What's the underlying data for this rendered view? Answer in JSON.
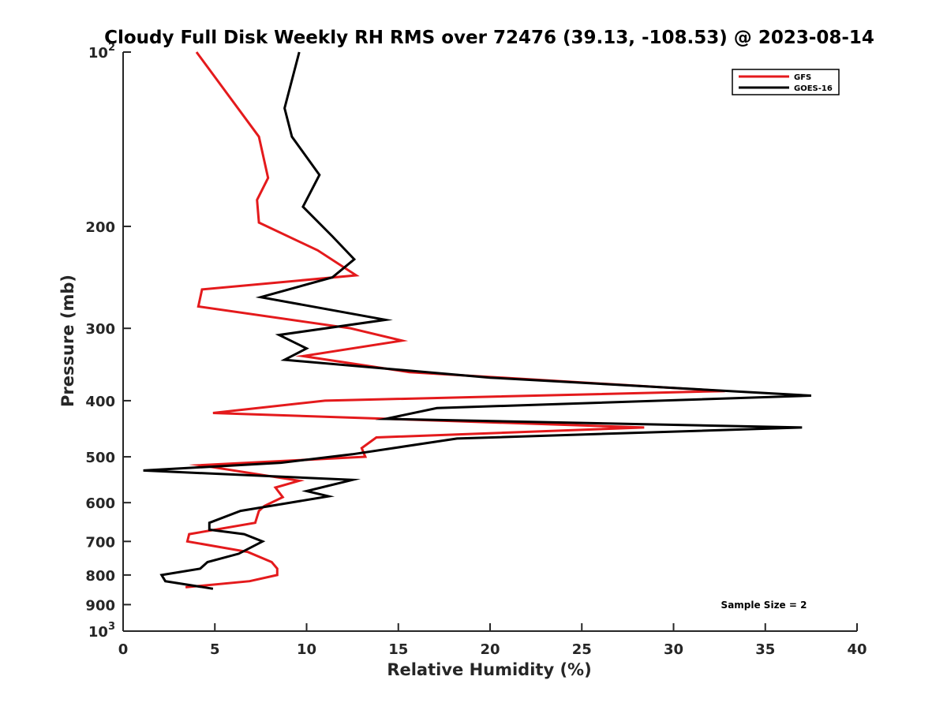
{
  "chart_data": {
    "type": "line",
    "title": "Cloudy Full Disk Weekly RH RMS over 72476 (39.13, -108.53) @ 2023-08-14",
    "xlabel": "Relative Humidity (%)",
    "ylabel": "Pressure (mb)",
    "xlim": [
      0,
      40
    ],
    "ylim": [
      100,
      1000
    ],
    "y_scale": "log",
    "y_reversed": true,
    "grid": false,
    "legend_position": "top-right",
    "x_ticks": [
      "0",
      "5",
      "10",
      "15",
      "20",
      "25",
      "30",
      "35",
      "40"
    ],
    "y_ticks": [
      {
        "value": 100,
        "base": "10",
        "exp": "2"
      },
      {
        "value": 200,
        "label": "200"
      },
      {
        "value": 300,
        "label": "300"
      },
      {
        "value": 400,
        "label": "400"
      },
      {
        "value": 500,
        "label": "500"
      },
      {
        "value": 600,
        "label": "600"
      },
      {
        "value": 700,
        "label": "700"
      },
      {
        "value": 800,
        "label": "800"
      },
      {
        "value": 900,
        "label": "900"
      },
      {
        "value": 1000,
        "base": "10",
        "exp": "3"
      }
    ],
    "annotation": "Sample Size = 2",
    "series": [
      {
        "name": "GFS",
        "color": "#e41a1c",
        "points": [
          [
            4.0,
            100
          ],
          [
            7.4,
            140
          ],
          [
            7.9,
            165
          ],
          [
            7.3,
            180
          ],
          [
            7.4,
            197
          ],
          [
            10.6,
            220
          ],
          [
            12.7,
            243
          ],
          [
            4.3,
            257
          ],
          [
            4.1,
            275
          ],
          [
            12.4,
            300
          ],
          [
            15.2,
            315
          ],
          [
            9.8,
            335
          ],
          [
            15.6,
            357
          ],
          [
            32.8,
            385
          ],
          [
            11.0,
            400
          ],
          [
            4.9,
            420
          ],
          [
            28.4,
            445
          ],
          [
            13.8,
            463
          ],
          [
            13.0,
            483
          ],
          [
            13.2,
            500
          ],
          [
            4.2,
            517
          ],
          [
            9.6,
            550
          ],
          [
            8.3,
            565
          ],
          [
            8.7,
            587
          ],
          [
            7.7,
            608
          ],
          [
            7.4,
            620
          ],
          [
            7.2,
            650
          ],
          [
            3.6,
            680
          ],
          [
            3.5,
            700
          ],
          [
            6.8,
            730
          ],
          [
            8.1,
            760
          ],
          [
            8.4,
            780
          ],
          [
            8.4,
            800
          ],
          [
            6.9,
            820
          ],
          [
            3.4,
            840
          ]
        ]
      },
      {
        "name": "GOES-16",
        "color": "#000000",
        "points": [
          [
            9.6,
            100
          ],
          [
            8.8,
            125
          ],
          [
            9.2,
            140
          ],
          [
            10.7,
            163
          ],
          [
            9.8,
            185
          ],
          [
            11.4,
            208
          ],
          [
            12.6,
            228
          ],
          [
            11.4,
            245
          ],
          [
            7.5,
            265
          ],
          [
            14.3,
            290
          ],
          [
            8.5,
            308
          ],
          [
            10.0,
            325
          ],
          [
            8.8,
            340
          ],
          [
            20.0,
            365
          ],
          [
            37.5,
            392
          ],
          [
            17.1,
            412
          ],
          [
            14.3,
            430
          ],
          [
            37.0,
            445
          ],
          [
            18.2,
            465
          ],
          [
            12.5,
            495
          ],
          [
            8.6,
            512
          ],
          [
            1.1,
            528
          ],
          [
            12.5,
            548
          ],
          [
            10.0,
            573
          ],
          [
            11.2,
            585
          ],
          [
            6.4,
            620
          ],
          [
            4.7,
            650
          ],
          [
            4.7,
            668
          ],
          [
            6.6,
            680
          ],
          [
            7.6,
            700
          ],
          [
            6.3,
            735
          ],
          [
            4.6,
            760
          ],
          [
            4.2,
            780
          ],
          [
            2.1,
            800
          ],
          [
            2.3,
            820
          ],
          [
            4.9,
            845
          ]
        ]
      }
    ]
  }
}
